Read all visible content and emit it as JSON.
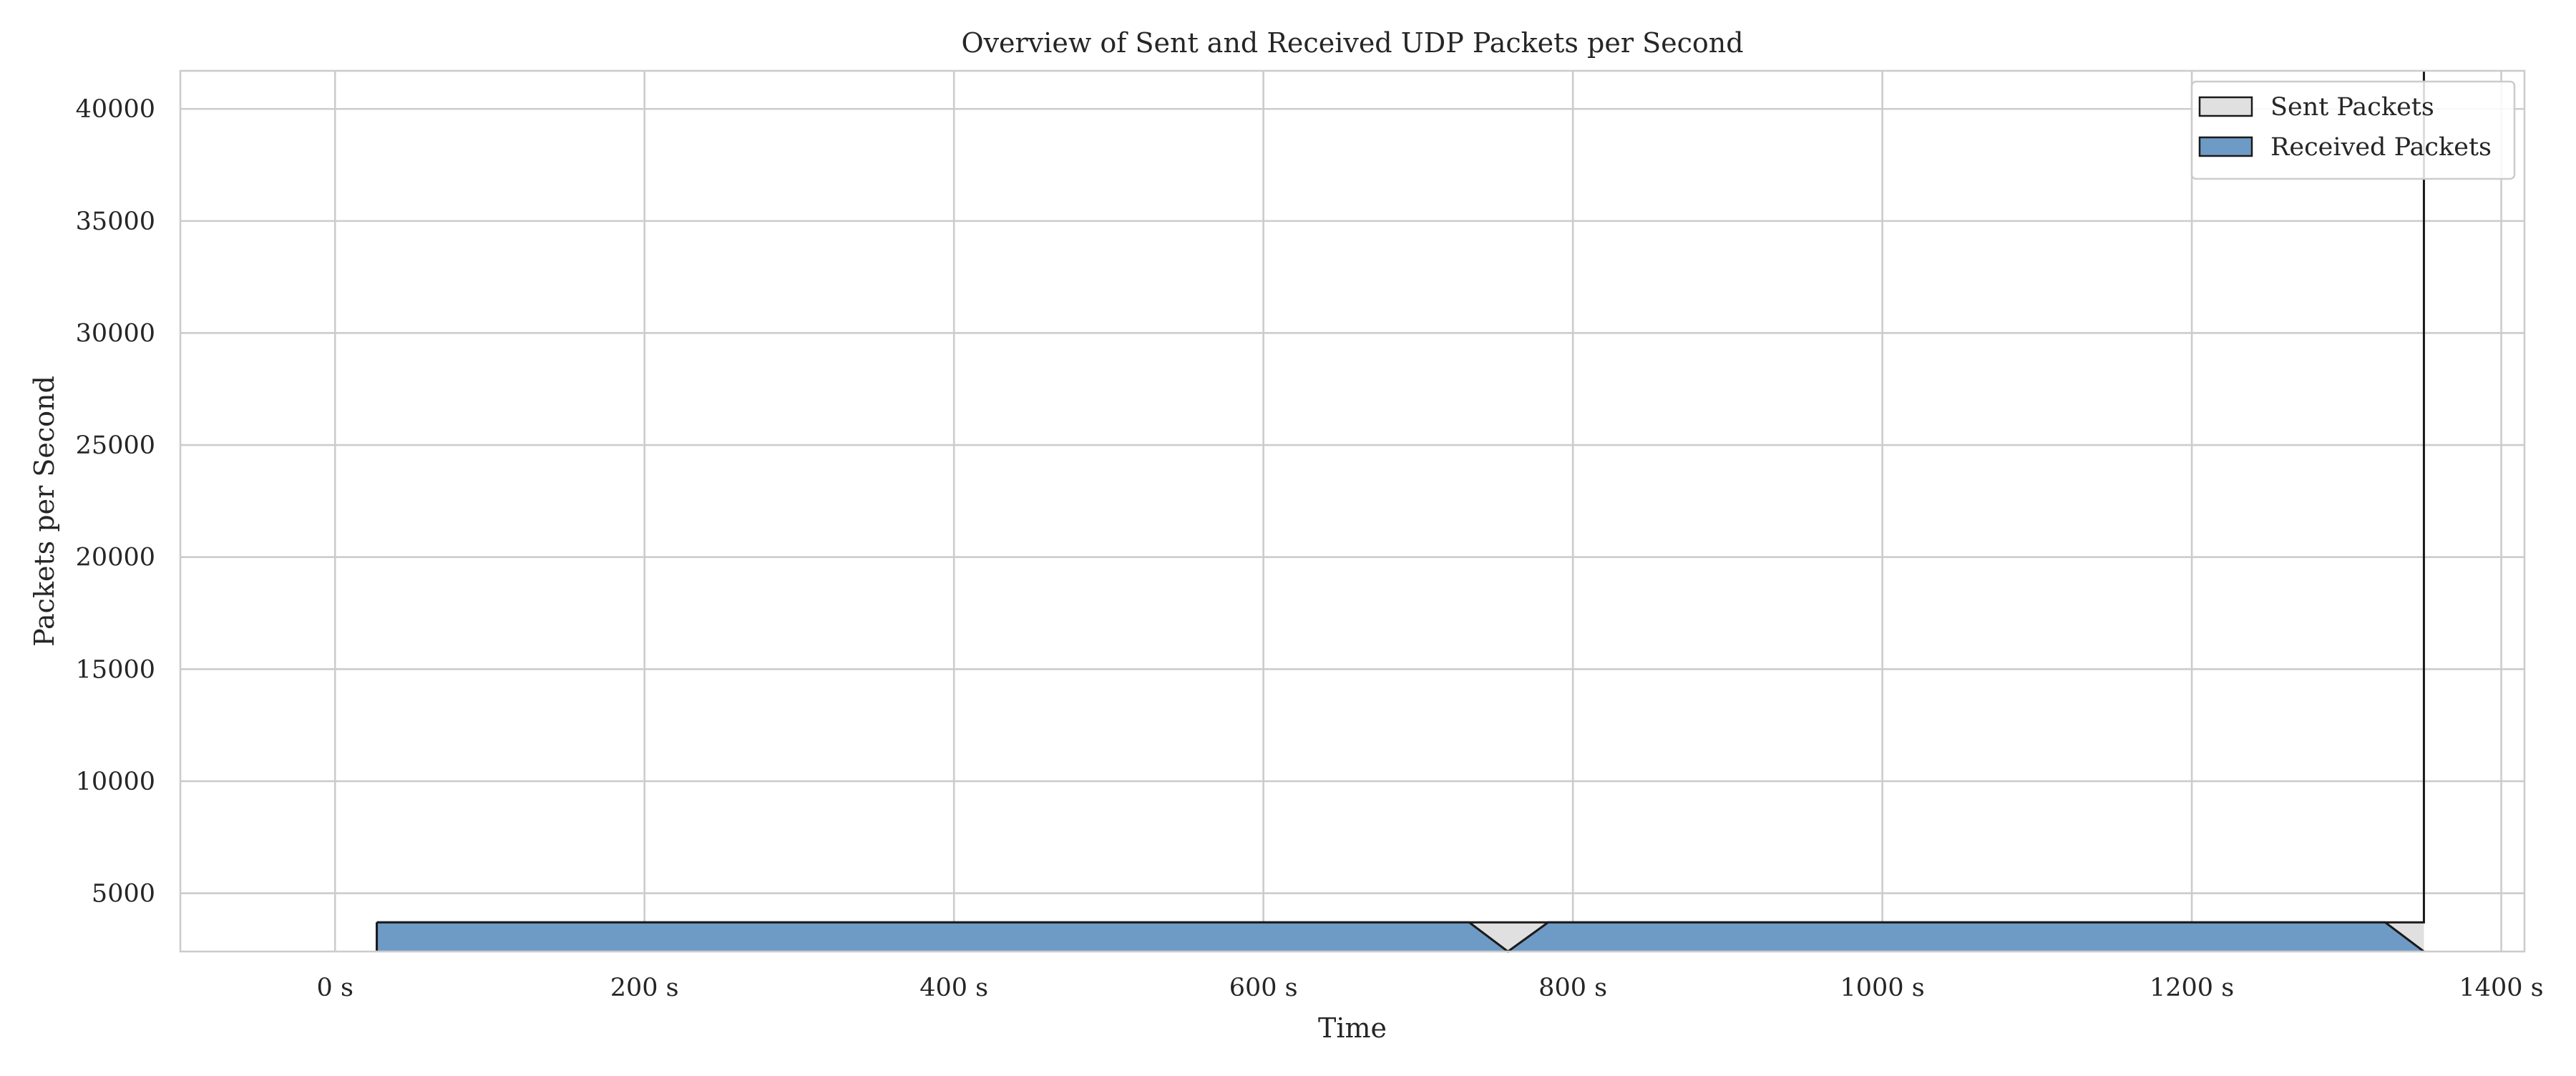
{
  "chart_data": {
    "type": "area",
    "title": "Overview of Sent and Received UDP Packets per Second",
    "xlabel": "Time",
    "ylabel": "Packets per Second",
    "xlim": [
      -100,
      1415
    ],
    "ylim": [
      2400,
      41700
    ],
    "x_ticks": [
      0,
      200,
      400,
      600,
      800,
      1000,
      1200,
      1400
    ],
    "x_tick_labels": [
      "0 s",
      "200 s",
      "400 s",
      "600 s",
      "800 s",
      "1000 s",
      "1200 s",
      "1400 s"
    ],
    "y_ticks": [
      5000,
      10000,
      15000,
      20000,
      25000,
      30000,
      35000,
      40000
    ],
    "y_tick_labels": [
      "5000",
      "10000",
      "15000",
      "20000",
      "25000",
      "30000",
      "35000",
      "40000"
    ],
    "grid": true,
    "legend_position": "top-right",
    "series": [
      {
        "name": "Sent Packets",
        "color": "#e0e0e0",
        "edge_color": "#1a1a1a",
        "x": [
          27,
          733,
          758,
          784,
          1325,
          1350,
          1350
        ],
        "y": [
          3700,
          3700,
          3700,
          3700,
          3700,
          3700,
          41700
        ]
      },
      {
        "name": "Received Packets",
        "color": "#6e9bc5",
        "edge_color": "#1a1a1a",
        "x": [
          27,
          733,
          758,
          784,
          1325,
          1350
        ],
        "y": [
          3700,
          3700,
          2400,
          3700,
          3700,
          2400
        ]
      }
    ]
  }
}
